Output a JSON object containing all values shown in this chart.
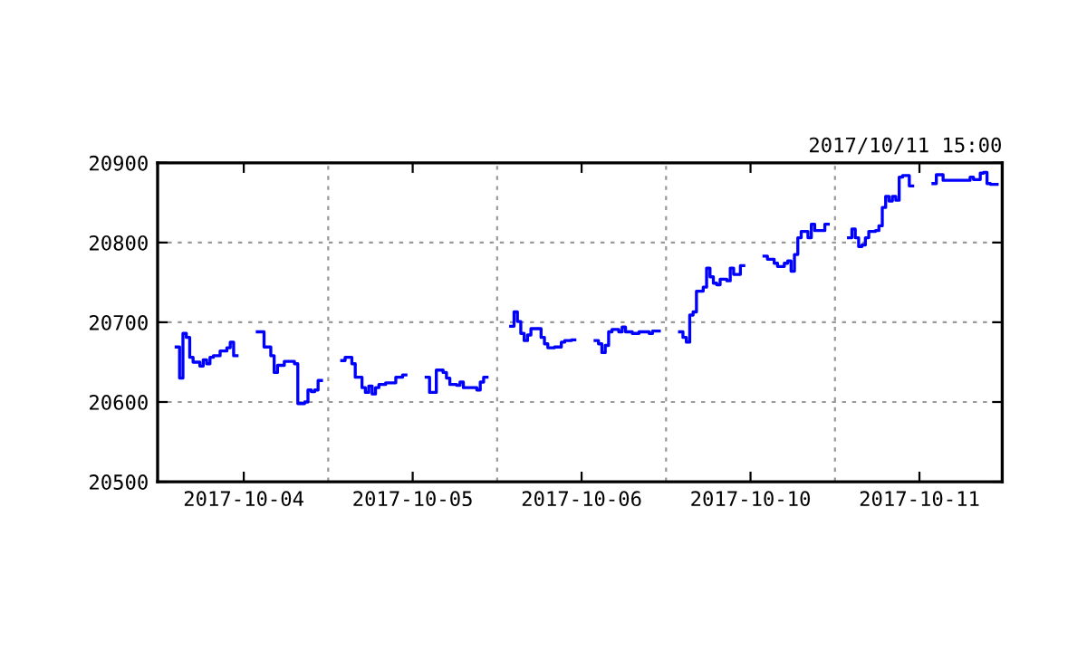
{
  "chart_data": {
    "type": "step",
    "subtitle": "2017/10/11 15:00",
    "categories": [
      null,
      null,
      null,
      null,
      null,
      null,
      null,
      null,
      null,
      null,
      null,
      null,
      null,
      null,
      null,
      null,
      null,
      null,
      null,
      null,
      null,
      null,
      null,
      null,
      null,
      "2017-10-04",
      null,
      null,
      null,
      null,
      null,
      null,
      null,
      null,
      null,
      null,
      null,
      null,
      null,
      null,
      null,
      null,
      null,
      null,
      null,
      null,
      null,
      null,
      null,
      null,
      null,
      null,
      null,
      null,
      null,
      null,
      null,
      null,
      null,
      null,
      null,
      null,
      null,
      null,
      null,
      null,
      null,
      null,
      null,
      null,
      null,
      null,
      null,
      null,
      null,
      "2017-10-05",
      null,
      null,
      null,
      null,
      null,
      null,
      null,
      null,
      null,
      null,
      null,
      null,
      null,
      null,
      null,
      null,
      null,
      null,
      null,
      null,
      null,
      null,
      null,
      null,
      null,
      null,
      null,
      null,
      null,
      null,
      null,
      null,
      null,
      null,
      null,
      null,
      null,
      null,
      null,
      null,
      null,
      null,
      null,
      null,
      null,
      null,
      null,
      null,
      null,
      "2017-10-06",
      null,
      null,
      null,
      null,
      null,
      null,
      null,
      null,
      null,
      null,
      null,
      null,
      null,
      null,
      null,
      null,
      null,
      null,
      null,
      null,
      null,
      null,
      null,
      null,
      null,
      null,
      null,
      null,
      null,
      null,
      null,
      null,
      null,
      null,
      null,
      null,
      null,
      null,
      null,
      null,
      null,
      null,
      null,
      null,
      null,
      null,
      null,
      null,
      null,
      "2017-10-10",
      null,
      null,
      null,
      null,
      null,
      null,
      null,
      null,
      null,
      null,
      null,
      null,
      null,
      null,
      null,
      null,
      null,
      null,
      null,
      null,
      null,
      null,
      null,
      null,
      null,
      null,
      null,
      null,
      null,
      null,
      null,
      null,
      null,
      null,
      null,
      null,
      null,
      null,
      null,
      null,
      null,
      null,
      null,
      null,
      null,
      null,
      null,
      null,
      null,
      "2017-10-11",
      null,
      null,
      null,
      null,
      null,
      null,
      null,
      null,
      null,
      null,
      null,
      null,
      null,
      null,
      null,
      null,
      null,
      null,
      null,
      null,
      null,
      null,
      null,
      null
    ],
    "series": [
      {
        "color": "#0000ff",
        "values": [
          null,
          null,
          null,
          null,
          null,
          20669,
          20630,
          20686,
          20681,
          20656,
          20650,
          20650,
          20645,
          20653,
          20648,
          20656,
          20658,
          20658,
          20664,
          20664,
          20668,
          20675,
          20658,
          null,
          null,
          null,
          null,
          null,
          null,
          20688,
          20688,
          20669,
          20669,
          20658,
          20637,
          20646,
          20646,
          20651,
          20651,
          20651,
          20648,
          20598,
          20598,
          20600,
          20615,
          20613,
          20615,
          20627,
          null,
          null,
          null,
          null,
          null,
          null,
          20652,
          20656,
          20656,
          20648,
          20631,
          20631,
          20618,
          20612,
          20620,
          20610,
          20618,
          20622,
          20622,
          20624,
          20624,
          20624,
          20631,
          20631,
          20634,
          null,
          null,
          null,
          null,
          null,
          null,
          20631,
          20612,
          20612,
          20640,
          20640,
          20637,
          20630,
          20622,
          20622,
          20621,
          20625,
          20618,
          20618,
          20618,
          20618,
          20615,
          20625,
          20631,
          null,
          null,
          null,
          null,
          null,
          null,
          null,
          20695,
          20713,
          20701,
          20686,
          20677,
          20684,
          20692,
          20692,
          20692,
          20681,
          20673,
          20668,
          20668,
          20669,
          20669,
          20675,
          20677,
          20677,
          20678,
          null,
          null,
          null,
          null,
          null,
          null,
          20677,
          20673,
          20662,
          20671,
          20688,
          20691,
          20691,
          20688,
          20694,
          20688,
          20688,
          20686,
          20686,
          20688,
          20688,
          20688,
          20686,
          20689,
          20689,
          null,
          null,
          null,
          null,
          null,
          null,
          20688,
          20681,
          20675,
          20709,
          20713,
          20739,
          20739,
          20744,
          20768,
          20757,
          20749,
          20747,
          20754,
          20754,
          20752,
          20768,
          20760,
          20760,
          20771,
          null,
          null,
          null,
          null,
          null,
          null,
          20783,
          20779,
          20779,
          20774,
          20770,
          20770,
          20774,
          20777,
          20764,
          20785,
          20806,
          20814,
          20814,
          20806,
          20823,
          20815,
          20815,
          20815,
          20823,
          null,
          null,
          null,
          null,
          null,
          null,
          20806,
          20817,
          20806,
          20795,
          20797,
          20806,
          20814,
          20814,
          20815,
          20821,
          20844,
          20858,
          20852,
          20858,
          20853,
          20882,
          20884,
          20884,
          20871,
          null,
          null,
          null,
          null,
          null,
          null,
          20874,
          20885,
          20885,
          20878,
          20878,
          20878,
          20878,
          20878,
          20878,
          20878,
          20878,
          20882,
          20879,
          20879,
          20887,
          20888,
          20874,
          20873,
          20873,
          null,
          null
        ]
      }
    ],
    "ylim": [
      20500,
      20900
    ],
    "yticks": [
      20500,
      20600,
      20700,
      20800,
      20900
    ],
    "grid": true,
    "line_style": "solid"
  }
}
